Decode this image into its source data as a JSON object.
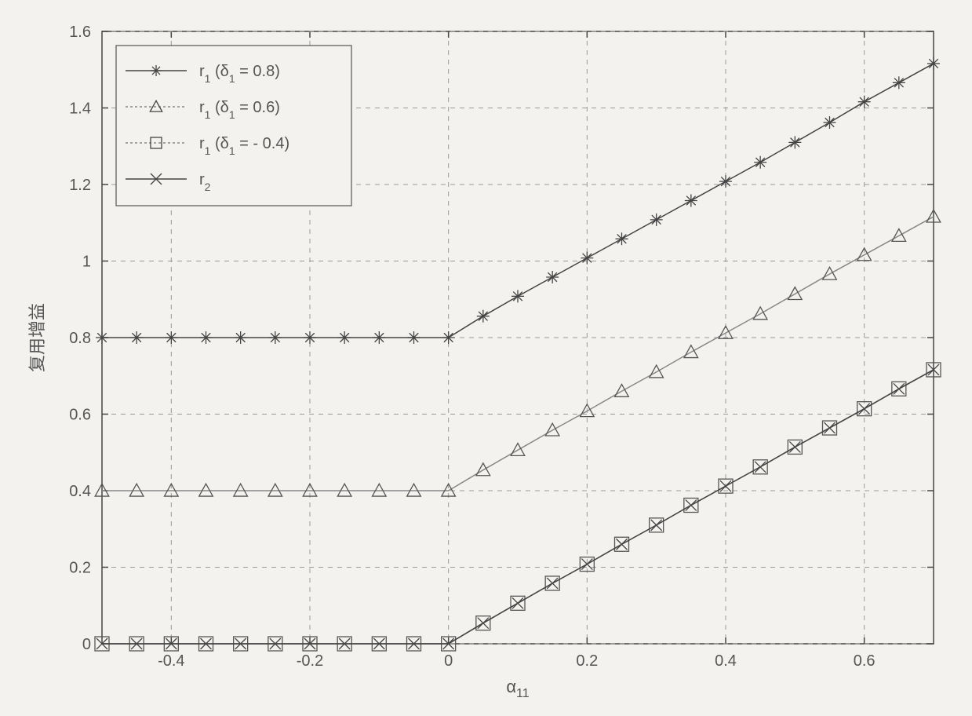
{
  "chart": {
    "type": "line",
    "background_color": "#f3f2ee",
    "plot_background": "#f3f2ee",
    "axis_color": "#444444",
    "grid_color": "#999999",
    "grid_dash": "6,6",
    "line_width": 1.5,
    "xlim": [
      -0.5,
      0.7
    ],
    "ylim": [
      0,
      1.6
    ],
    "xticks": [
      -0.4,
      -0.2,
      0,
      0.2,
      0.4,
      0.6
    ],
    "yticks": [
      0,
      0.2,
      0.4,
      0.6,
      0.8,
      1,
      1.2,
      1.4,
      1.6
    ],
    "xlabel_main": "α",
    "xlabel_sub": "11",
    "ylabel": "复用增益",
    "label_fontsize": 22,
    "tick_fontsize": 20,
    "marker_x": [
      -0.5,
      -0.45,
      -0.4,
      -0.35,
      -0.3,
      -0.25,
      -0.2,
      -0.15,
      -0.1,
      -0.05,
      0,
      0.05,
      0.1,
      0.15,
      0.2,
      0.25,
      0.3,
      0.35,
      0.4,
      0.45,
      0.5,
      0.55,
      0.6,
      0.65,
      0.7
    ],
    "legend": {
      "position": "top-left",
      "border_color": "#555555",
      "background": "#f3f2ee",
      "items": [
        {
          "label_html": "r<tspan class='sub'>1</tspan> (δ<tspan class='sub'>1</tspan> = 0.8)",
          "marker": "asterisk",
          "line_color": "#444444"
        },
        {
          "label_html": "r<tspan class='sub'>1</tspan> (δ<tspan class='sub'>1</tspan> = 0.6)",
          "marker": "triangle",
          "line_color": "#888888"
        },
        {
          "label_html": "r<tspan class='sub'>1</tspan> (δ<tspan class='sub'>1</tspan> = - 0.4)",
          "marker": "square",
          "line_color": "#888888"
        },
        {
          "label_html": "r<tspan class='sub'>2</tspan>",
          "marker": "x",
          "line_color": "#444444"
        }
      ]
    },
    "series": [
      {
        "name": "r1_d08",
        "marker": "asterisk",
        "line_color": "#444444",
        "marker_color": "#444444",
        "marker_size": 8,
        "y": [
          0.8,
          0.8,
          0.8,
          0.8,
          0.8,
          0.8,
          0.8,
          0.8,
          0.8,
          0.8,
          0.8,
          0.856,
          0.908,
          0.958,
          1.008,
          1.058,
          1.108,
          1.158,
          1.208,
          1.258,
          1.31,
          1.362,
          1.416,
          1.466,
          1.516
        ]
      },
      {
        "name": "r1_d06",
        "marker": "triangle",
        "line_color": "#888888",
        "marker_color": "#555555",
        "marker_size": 8,
        "y": [
          0.4,
          0.4,
          0.4,
          0.4,
          0.4,
          0.4,
          0.4,
          0.4,
          0.4,
          0.4,
          0.4,
          0.454,
          0.506,
          0.558,
          0.608,
          0.66,
          0.71,
          0.762,
          0.812,
          0.862,
          0.914,
          0.966,
          1.016,
          1.066,
          1.116
        ]
      },
      {
        "name": "r1_dm04",
        "marker": "square",
        "line_color": "#888888",
        "marker_color": "#555555",
        "marker_size": 9,
        "y": [
          0.0,
          0.0,
          0.0,
          0.0,
          0.0,
          0.0,
          0.0,
          0.0,
          0.0,
          0.0,
          0.0,
          0.054,
          0.106,
          0.158,
          0.208,
          0.26,
          0.31,
          0.362,
          0.412,
          0.462,
          0.514,
          0.564,
          0.614,
          0.666,
          0.716
        ]
      },
      {
        "name": "r2",
        "marker": "x",
        "line_color": "#444444",
        "marker_color": "#444444",
        "marker_size": 7,
        "y": [
          0.0,
          0.0,
          0.0,
          0.0,
          0.0,
          0.0,
          0.0,
          0.0,
          0.0,
          0.0,
          0.0,
          0.054,
          0.106,
          0.158,
          0.208,
          0.26,
          0.31,
          0.362,
          0.412,
          0.462,
          0.514,
          0.564,
          0.614,
          0.666,
          0.716
        ]
      }
    ]
  }
}
